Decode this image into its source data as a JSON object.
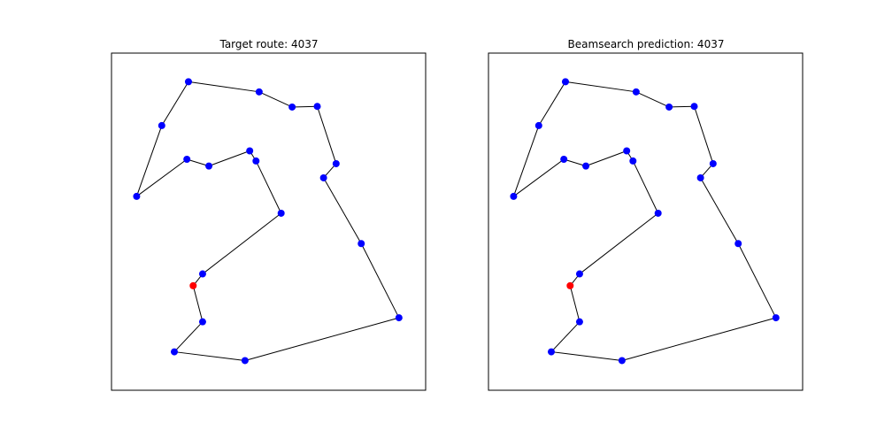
{
  "chart_data": [
    {
      "type": "scatter",
      "title": "Target route: 4037",
      "xlabel": "",
      "ylabel": "",
      "grid": false,
      "axis_ticks": false,
      "xlim": [
        0,
        1
      ],
      "ylim": [
        0,
        1
      ],
      "route_color": "#000000",
      "point_color": "#0000ff",
      "start_color": "#ff0000",
      "start_index": 0,
      "route": [
        [
          0.26,
          0.31
        ],
        [
          0.29,
          0.345
        ],
        [
          0.54,
          0.525
        ],
        [
          0.46,
          0.68
        ],
        [
          0.44,
          0.71
        ],
        [
          0.31,
          0.665
        ],
        [
          0.24,
          0.685
        ],
        [
          0.08,
          0.575
        ],
        [
          0.16,
          0.785
        ],
        [
          0.245,
          0.915
        ],
        [
          0.47,
          0.885
        ],
        [
          0.575,
          0.84
        ],
        [
          0.655,
          0.842
        ],
        [
          0.715,
          0.672
        ],
        [
          0.675,
          0.63
        ],
        [
          0.795,
          0.435
        ],
        [
          0.915,
          0.215
        ],
        [
          0.425,
          0.088
        ],
        [
          0.2,
          0.114
        ],
        [
          0.29,
          0.203
        ]
      ]
    },
    {
      "type": "scatter",
      "title": "Beamsearch prediction: 4037",
      "xlabel": "",
      "ylabel": "",
      "grid": false,
      "axis_ticks": false,
      "xlim": [
        0,
        1
      ],
      "ylim": [
        0,
        1
      ],
      "route_color": "#000000",
      "point_color": "#0000ff",
      "start_color": "#ff0000",
      "start_index": 0,
      "route": [
        [
          0.26,
          0.31
        ],
        [
          0.29,
          0.345
        ],
        [
          0.54,
          0.525
        ],
        [
          0.46,
          0.68
        ],
        [
          0.44,
          0.71
        ],
        [
          0.31,
          0.665
        ],
        [
          0.24,
          0.685
        ],
        [
          0.08,
          0.575
        ],
        [
          0.16,
          0.785
        ],
        [
          0.245,
          0.915
        ],
        [
          0.47,
          0.885
        ],
        [
          0.575,
          0.84
        ],
        [
          0.655,
          0.842
        ],
        [
          0.715,
          0.672
        ],
        [
          0.675,
          0.63
        ],
        [
          0.795,
          0.435
        ],
        [
          0.915,
          0.215
        ],
        [
          0.425,
          0.088
        ],
        [
          0.2,
          0.114
        ],
        [
          0.29,
          0.203
        ]
      ]
    }
  ]
}
